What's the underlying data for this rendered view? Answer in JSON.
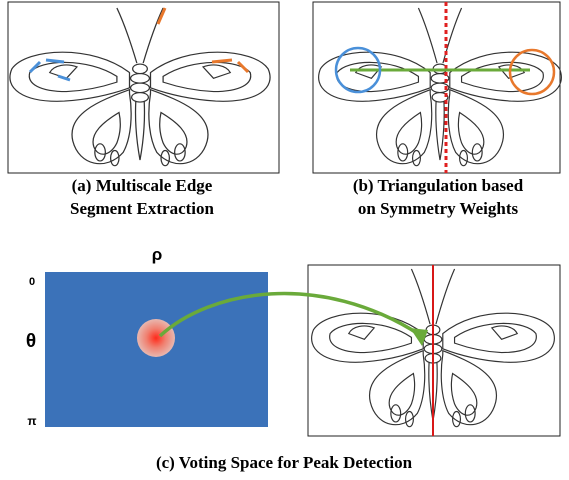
{
  "panels": [
    {
      "caption": [
        "(a) Multiscale Edge",
        "Segment Extraction"
      ]
    },
    {
      "caption": [
        "(b) Triangulation based",
        "on Symmetry Weights"
      ]
    },
    {
      "caption": [
        "(c) Voting Space for Peak Detection"
      ],
      "axes": {
        "rho": "ρ",
        "theta": "θ",
        "theta_start": "0",
        "theta_end": "π"
      }
    }
  ]
}
